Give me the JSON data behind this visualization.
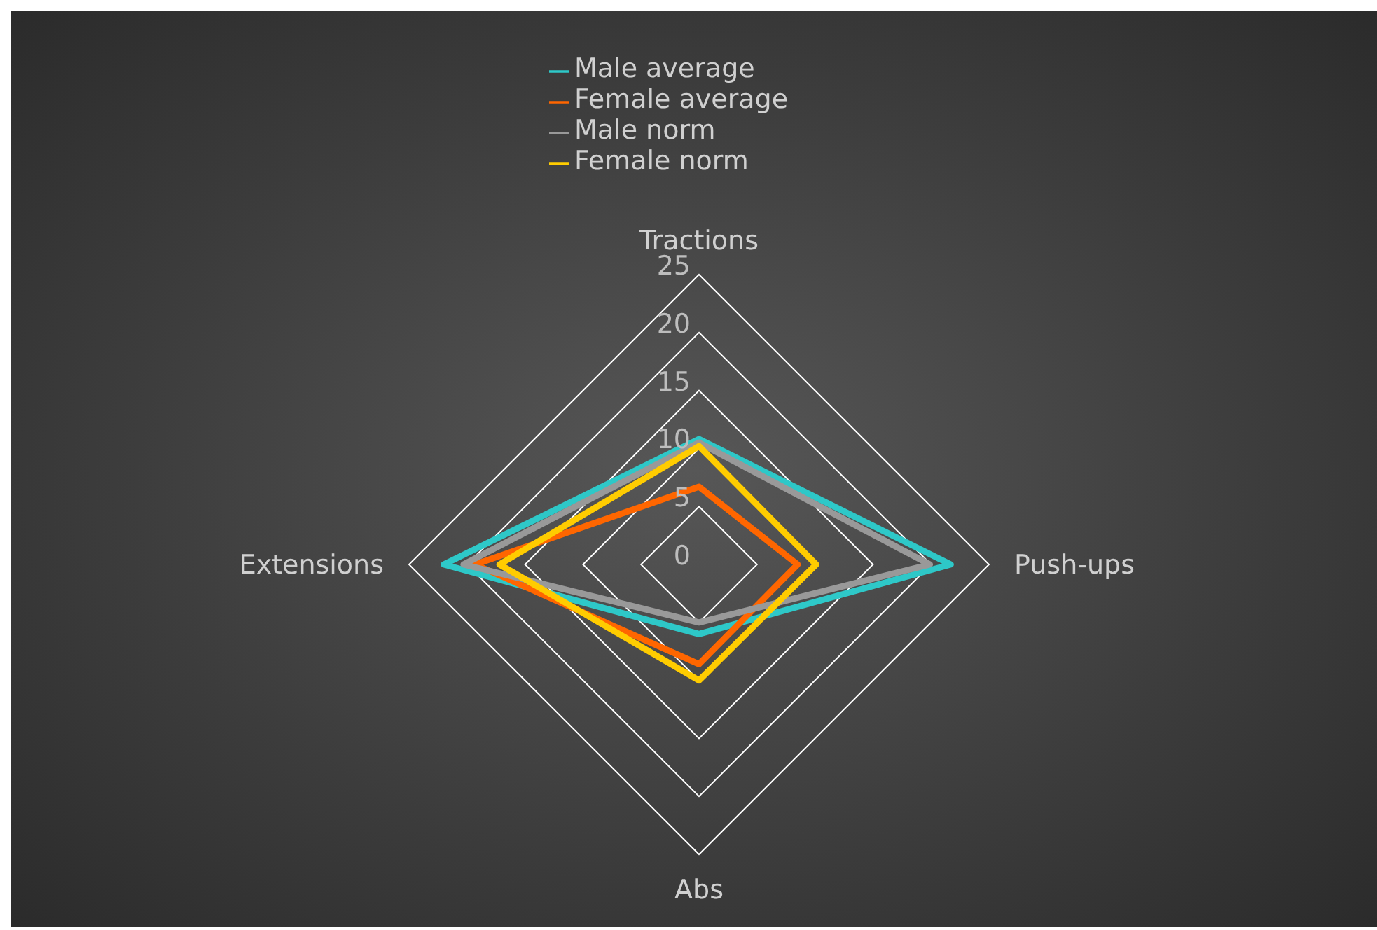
{
  "chart_data": {
    "type": "radar",
    "categories": [
      "Tractions",
      "Push-ups",
      "Abs",
      "Extensions"
    ],
    "series": [
      {
        "name": "Male average",
        "color": "#2ec8c8",
        "values": [
          10.8,
          21.7,
          6.0,
          22.0
        ]
      },
      {
        "name": "Female average",
        "color": "#ff6600",
        "values": [
          6.7,
          8.5,
          8.6,
          19.3
        ]
      },
      {
        "name": "Male norm",
        "color": "#999999",
        "values": [
          10.5,
          19.9,
          5.0,
          20.3
        ]
      },
      {
        "name": "Female norm",
        "color": "#ffcc00",
        "values": [
          10.2,
          10.1,
          10.0,
          17.2
        ]
      }
    ],
    "ylim": [
      0,
      25
    ],
    "yticks": [
      0,
      5,
      10,
      15,
      20,
      25
    ],
    "grid": true,
    "legend": "top",
    "marker": "none",
    "line_style": "solid"
  }
}
